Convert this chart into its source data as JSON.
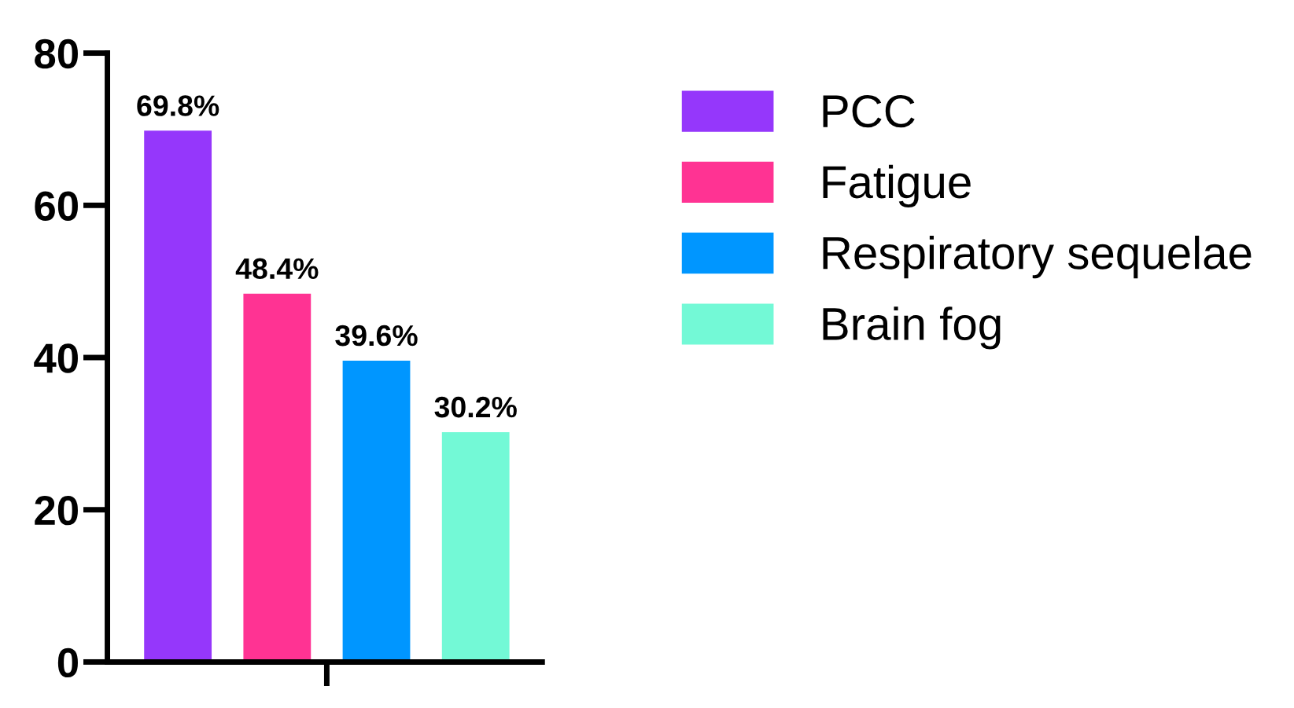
{
  "chart_data": {
    "type": "bar",
    "categories": [
      null
    ],
    "series": [
      {
        "name": "PCC",
        "color": "#9537fb",
        "values": [
          69.8
        ],
        "value_labels": [
          "69.8%"
        ]
      },
      {
        "name": "Fatigue",
        "color": "#ff3393",
        "values": [
          48.4
        ],
        "value_labels": [
          "48.4%"
        ]
      },
      {
        "name": "Respiratory sequelae",
        "color": "#0096ff",
        "values": [
          39.6
        ],
        "value_labels": [
          "39.6%"
        ]
      },
      {
        "name": "Brain fog",
        "color": "#73f9d6",
        "values": [
          30.2
        ],
        "value_labels": [
          "30.2%"
        ]
      }
    ],
    "ylim": [
      0,
      80
    ],
    "yticks": [
      0,
      20,
      40,
      60,
      80
    ],
    "grid": false,
    "legend": "right"
  }
}
